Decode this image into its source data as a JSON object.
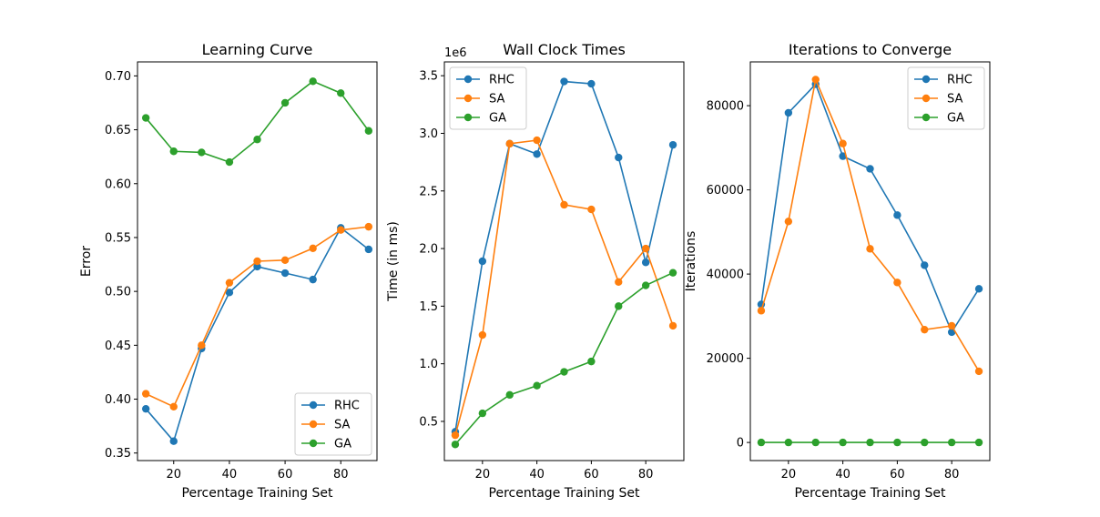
{
  "figure": {
    "background": "#ffffff"
  },
  "colors": {
    "RHC": "#1f77b4",
    "SA": "#ff7f0e",
    "GA": "#2ca02c"
  },
  "chart_data": [
    {
      "type": "line",
      "title": "Learning Curve",
      "xlabel": "Percentage Training Set",
      "ylabel": "Error",
      "x": [
        10,
        20,
        30,
        40,
        50,
        60,
        70,
        80,
        90
      ],
      "xlim": [
        7,
        93
      ],
      "ylim": [
        0.343,
        0.713
      ],
      "xticks": [
        20,
        40,
        60,
        80
      ],
      "yticks": [
        0.35,
        0.4,
        0.45,
        0.5,
        0.55,
        0.6,
        0.65,
        0.7
      ],
      "ytick_labels": [
        "0.35",
        "0.40",
        "0.45",
        "0.50",
        "0.55",
        "0.60",
        "0.65",
        "0.70"
      ],
      "y_offset_text": "",
      "grid": false,
      "legend": {
        "placement": "lower-right",
        "entries": [
          "RHC",
          "SA",
          "GA"
        ]
      },
      "series": [
        {
          "name": "RHC",
          "values": [
            0.391,
            0.361,
            0.447,
            0.499,
            0.523,
            0.517,
            0.511,
            0.559,
            0.539
          ]
        },
        {
          "name": "SA",
          "values": [
            0.405,
            0.393,
            0.45,
            0.508,
            0.528,
            0.529,
            0.54,
            0.557,
            0.56
          ]
        },
        {
          "name": "GA",
          "values": [
            0.661,
            0.63,
            0.629,
            0.62,
            0.641,
            0.675,
            0.695,
            0.684,
            0.649
          ]
        }
      ]
    },
    {
      "type": "line",
      "title": "Wall Clock Times",
      "xlabel": "Percentage Training Set",
      "ylabel": "Time (in ms)",
      "x": [
        10,
        20,
        30,
        40,
        50,
        60,
        70,
        80,
        90
      ],
      "xlim": [
        6,
        94
      ],
      "ylim": [
        0.16,
        3.62
      ],
      "xticks": [
        20,
        40,
        60,
        80
      ],
      "yticks": [
        0.5,
        1.0,
        1.5,
        2.0,
        2.5,
        3.0,
        3.5
      ],
      "ytick_labels": [
        "0.5",
        "1.0",
        "1.5",
        "2.0",
        "2.5",
        "3.0",
        "3.5"
      ],
      "y_offset_text": "1e6",
      "grid": false,
      "legend": {
        "placement": "upper-left",
        "entries": [
          "RHC",
          "SA",
          "GA"
        ]
      },
      "series": [
        {
          "name": "RHC",
          "values": [
            0.41,
            1.89,
            2.91,
            2.82,
            3.45,
            3.43,
            2.79,
            1.88,
            2.9
          ]
        },
        {
          "name": "SA",
          "values": [
            0.38,
            1.25,
            2.91,
            2.94,
            2.38,
            2.34,
            1.71,
            2.0,
            1.33
          ]
        },
        {
          "name": "GA",
          "values": [
            0.3,
            0.57,
            0.73,
            0.81,
            0.93,
            1.02,
            1.5,
            1.68,
            1.79
          ]
        }
      ]
    },
    {
      "type": "line",
      "title": "Iterations to Converge",
      "xlabel": "Percentage Training Set",
      "ylabel": "Iterations",
      "x": [
        10,
        20,
        30,
        40,
        50,
        60,
        70,
        80,
        90
      ],
      "xlim": [
        6,
        94
      ],
      "ylim": [
        -4300,
        90400
      ],
      "xticks": [
        20,
        40,
        60,
        80
      ],
      "yticks": [
        0,
        20000,
        40000,
        60000,
        80000
      ],
      "ytick_labels": [
        "0",
        "20000",
        "40000",
        "60000",
        "80000"
      ],
      "y_offset_text": "",
      "grid": false,
      "legend": {
        "placement": "upper-right",
        "entries": [
          "RHC",
          "SA",
          "GA"
        ]
      },
      "series": [
        {
          "name": "RHC",
          "values": [
            32800,
            78300,
            85100,
            68000,
            65000,
            54000,
            42100,
            26200,
            36500
          ]
        },
        {
          "name": "SA",
          "values": [
            31300,
            52500,
            86200,
            71000,
            46000,
            38000,
            26800,
            27700,
            16900
          ]
        },
        {
          "name": "GA",
          "values": [
            0,
            0,
            0,
            0,
            0,
            0,
            0,
            0,
            0
          ]
        }
      ]
    }
  ]
}
